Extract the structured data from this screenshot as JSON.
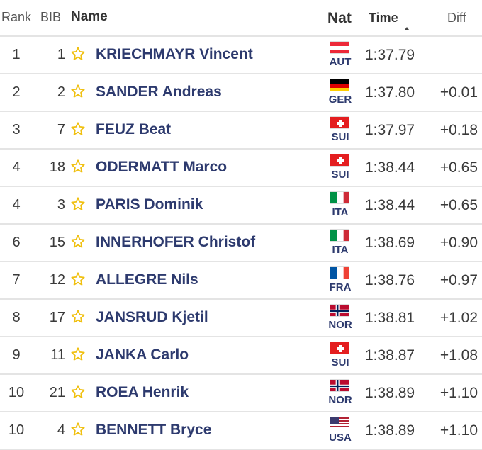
{
  "header": {
    "rank": "Rank",
    "bib": "BIB",
    "name": "Name",
    "nat": "Nat",
    "time": "Time",
    "diff": "Diff"
  },
  "colors": {
    "name_text": "#2d3a6e",
    "star": "#f0c010",
    "divider": "#e4e4e4"
  },
  "rows": [
    {
      "rank": "1",
      "bib": "1",
      "name": "KRIECHMAYR Vincent",
      "nat": "AUT",
      "flag": "aut-flag-icon",
      "time": "1:37.79",
      "diff": ""
    },
    {
      "rank": "2",
      "bib": "2",
      "name": "SANDER Andreas",
      "nat": "GER",
      "flag": "ger-flag-icon",
      "time": "1:37.80",
      "diff": "+0.01"
    },
    {
      "rank": "3",
      "bib": "7",
      "name": "FEUZ Beat",
      "nat": "SUI",
      "flag": "sui-flag-icon",
      "time": "1:37.97",
      "diff": "+0.18"
    },
    {
      "rank": "4",
      "bib": "18",
      "name": "ODERMATT Marco",
      "nat": "SUI",
      "flag": "sui-flag-icon",
      "time": "1:38.44",
      "diff": "+0.65"
    },
    {
      "rank": "4",
      "bib": "3",
      "name": "PARIS Dominik",
      "nat": "ITA",
      "flag": "ita-flag-icon",
      "time": "1:38.44",
      "diff": "+0.65"
    },
    {
      "rank": "6",
      "bib": "15",
      "name": "INNERHOFER Christof",
      "nat": "ITA",
      "flag": "ita-flag-icon",
      "time": "1:38.69",
      "diff": "+0.90"
    },
    {
      "rank": "7",
      "bib": "12",
      "name": "ALLEGRE Nils",
      "nat": "FRA",
      "flag": "fra-flag-icon",
      "time": "1:38.76",
      "diff": "+0.97"
    },
    {
      "rank": "8",
      "bib": "17",
      "name": "JANSRUD Kjetil",
      "nat": "NOR",
      "flag": "nor-flag-icon",
      "time": "1:38.81",
      "diff": "+1.02"
    },
    {
      "rank": "9",
      "bib": "11",
      "name": "JANKA Carlo",
      "nat": "SUI",
      "flag": "sui-flag-icon",
      "time": "1:38.87",
      "diff": "+1.08"
    },
    {
      "rank": "10",
      "bib": "21",
      "name": "ROEA Henrik",
      "nat": "NOR",
      "flag": "nor-flag-icon",
      "time": "1:38.89",
      "diff": "+1.10"
    },
    {
      "rank": "10",
      "bib": "4",
      "name": "BENNETT Bryce",
      "nat": "USA",
      "flag": "usa-flag-icon",
      "time": "1:38.89",
      "diff": "+1.10"
    }
  ]
}
